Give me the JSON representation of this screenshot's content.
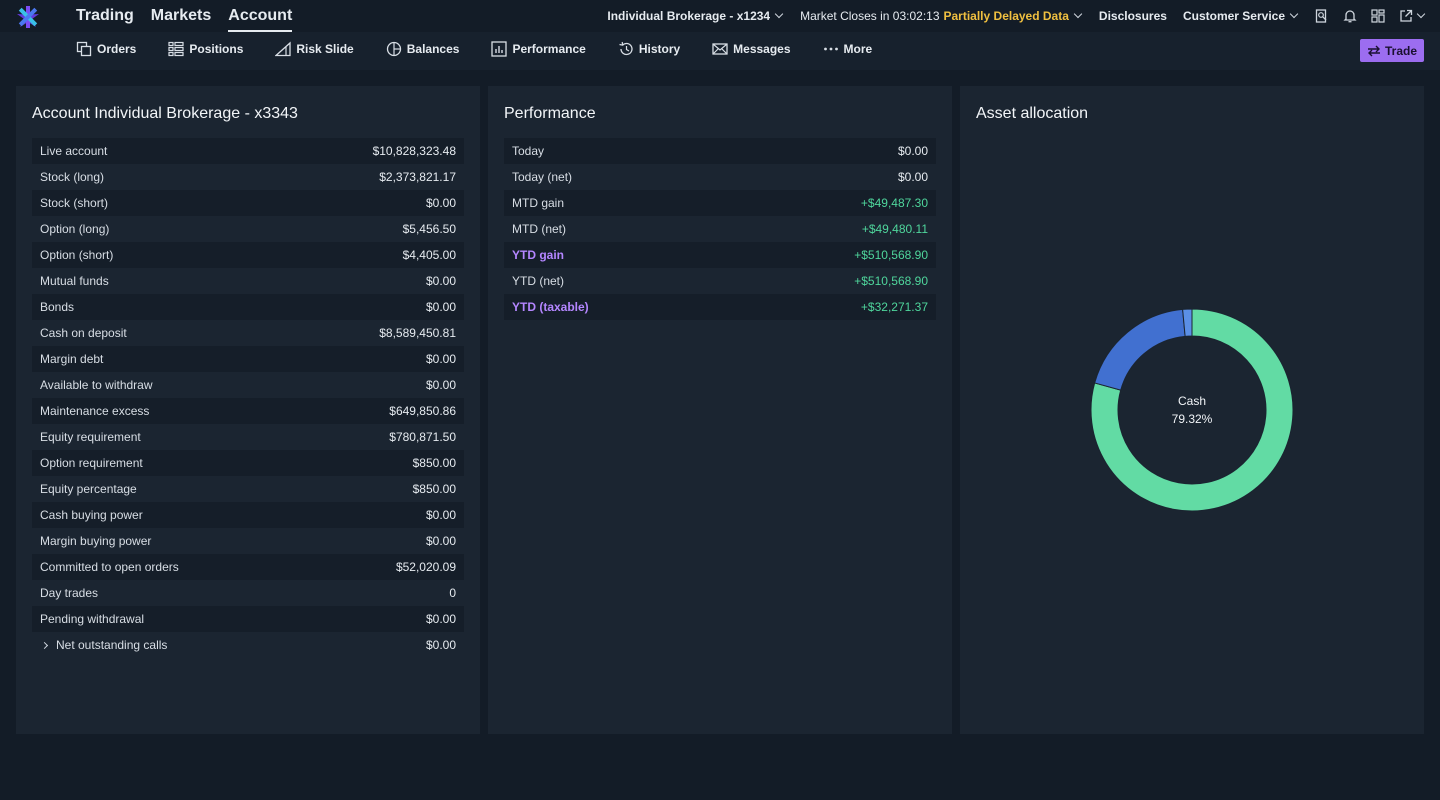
{
  "header": {
    "nav": [
      {
        "label": "Trading",
        "active": false
      },
      {
        "label": "Markets",
        "active": false
      },
      {
        "label": "Account",
        "active": true
      }
    ],
    "account_selector": "Individual Brokerage - x1234",
    "market_status": "Market Closes in 03:02:13",
    "data_status": "Partially Delayed Data",
    "disclosures": "Disclosures",
    "customer_service": "Customer Service",
    "icons": [
      "search-doc-icon",
      "bell-icon",
      "layout-icon",
      "external-link-icon"
    ]
  },
  "subnav": {
    "items": [
      {
        "label": "Orders",
        "icon": "orders-icon"
      },
      {
        "label": "Positions",
        "icon": "positions-icon"
      },
      {
        "label": "Risk Slide",
        "icon": "risk-slide-icon"
      },
      {
        "label": "Balances",
        "icon": "balances-icon"
      },
      {
        "label": "Performance",
        "icon": "performance-icon"
      },
      {
        "label": "History",
        "icon": "history-icon"
      },
      {
        "label": "Messages",
        "icon": "messages-icon"
      },
      {
        "label": "More",
        "icon": "more-icon"
      }
    ],
    "trade_label": "Trade"
  },
  "account": {
    "title": "Account Individual Brokerage - x3343",
    "rows": [
      {
        "label": "Live account",
        "value": "$10,828,323.48"
      },
      {
        "label": "Stock (long)",
        "value": "$2,373,821.17"
      },
      {
        "label": "Stock (short)",
        "value": "$0.00"
      },
      {
        "label": "Option (long)",
        "value": "$5,456.50"
      },
      {
        "label": "Option (short)",
        "value": "$4,405.00"
      },
      {
        "label": "Mutual funds",
        "value": "$0.00"
      },
      {
        "label": "Bonds",
        "value": "$0.00"
      },
      {
        "label": "Cash on deposit",
        "value": "$8,589,450.81"
      },
      {
        "label": "Margin debt",
        "value": "$0.00"
      },
      {
        "label": "Available to withdraw",
        "value": "$0.00"
      },
      {
        "label": "Maintenance excess",
        "value": "$649,850.86"
      },
      {
        "label": "Equity requirement",
        "value": "$780,871.50"
      },
      {
        "label": "Option requirement",
        "value": "$850.00"
      },
      {
        "label": "Equity percentage",
        "value": "$850.00"
      },
      {
        "label": "Cash buying power",
        "value": "$0.00"
      },
      {
        "label": "Margin buying power",
        "value": "$0.00"
      },
      {
        "label": "Committed to open orders",
        "value": "$52,020.09"
      },
      {
        "label": "Day trades",
        "value": "0"
      },
      {
        "label": "Pending withdrawal",
        "value": "$0.00"
      },
      {
        "label": "Net outstanding calls",
        "value": "$0.00",
        "expandable": true
      }
    ]
  },
  "performance": {
    "title": "Performance",
    "rows": [
      {
        "label": "Today",
        "value": "$0.00",
        "positive": false,
        "highlight": false
      },
      {
        "label": "Today (net)",
        "value": "$0.00",
        "positive": false,
        "highlight": false
      },
      {
        "label": "MTD gain",
        "value": "+$49,487.30",
        "positive": true,
        "highlight": false
      },
      {
        "label": "MTD (net)",
        "value": "+$49,480.11",
        "positive": true,
        "highlight": false
      },
      {
        "label": "YTD gain",
        "value": "+$510,568.90",
        "positive": true,
        "highlight": true
      },
      {
        "label": "YTD (net)",
        "value": "+$510,568.90",
        "positive": true,
        "highlight": false
      },
      {
        "label": "YTD (taxable)",
        "value": "+$32,271.37",
        "positive": true,
        "highlight": true
      }
    ]
  },
  "allocation": {
    "title": "Asset allocation",
    "center_label": "Cash",
    "center_value": "79.32%",
    "segments": [
      {
        "fraction": 0.7932,
        "color": "#62dba4"
      },
      {
        "fraction": 0.192,
        "color": "#4170d0"
      },
      {
        "fraction": 0.0148,
        "color": "#5b8fe6"
      }
    ]
  },
  "colors": {
    "accent": "#9c6df0",
    "positive": "#4fd69c",
    "warning": "#f0c040",
    "highlight": "#b486ff"
  }
}
